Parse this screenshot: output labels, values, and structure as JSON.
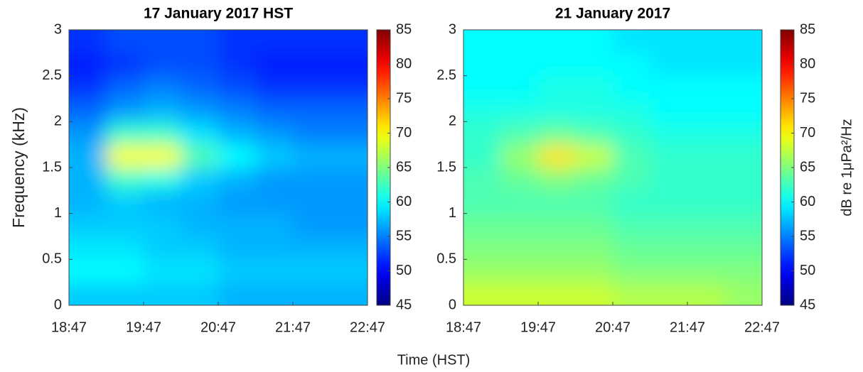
{
  "xlabel": "Time (HST)",
  "chart_data": [
    {
      "type": "heatmap",
      "title": "17 January 2017 HST",
      "ylabel": "Frequency (kHz)",
      "colormap": "jet",
      "x": [
        "19:02",
        "19:32",
        "20:02",
        "20:32",
        "21:02",
        "21:32",
        "22:02",
        "22:32"
      ],
      "y": [
        0.125,
        0.375,
        0.625,
        0.875,
        1.125,
        1.375,
        1.625,
        1.875,
        2.125,
        2.375,
        2.625,
        2.875
      ],
      "values": [
        [
          58,
          58,
          58,
          58,
          57,
          57,
          57,
          57
        ],
        [
          60,
          60,
          59,
          59,
          58,
          58,
          58,
          58
        ],
        [
          59,
          59,
          58,
          58,
          57,
          57,
          57,
          57
        ],
        [
          58,
          58,
          58,
          57,
          57,
          57,
          56,
          56
        ],
        [
          57,
          58,
          57,
          57,
          56,
          56,
          56,
          56
        ],
        [
          57,
          62,
          61,
          58,
          57,
          56,
          56,
          56
        ],
        [
          57,
          70,
          70,
          63,
          60,
          58,
          57,
          57
        ],
        [
          56,
          62,
          62,
          59,
          57,
          56,
          55,
          55
        ],
        [
          54,
          56,
          57,
          56,
          55,
          54,
          54,
          54
        ],
        [
          52,
          54,
          55,
          54,
          53,
          52,
          52,
          52
        ],
        [
          51,
          52,
          53,
          53,
          52,
          51,
          51,
          51
        ],
        [
          52,
          53,
          53,
          53,
          52,
          52,
          52,
          52
        ]
      ],
      "xlim": [
        "18:47",
        "22:47"
      ],
      "xticks": [
        "18:47",
        "19:47",
        "20:47",
        "21:47",
        "22:47"
      ],
      "ylim": [
        0,
        3
      ],
      "yticks": [
        0,
        0.5,
        1,
        1.5,
        2,
        2.5,
        3
      ],
      "zlim": [
        45,
        85
      ],
      "zticks": [
        45,
        50,
        55,
        60,
        65,
        70,
        75,
        80,
        85
      ]
    },
    {
      "type": "heatmap",
      "title": "21 January 2017",
      "zlabel": "dB re 1μPa²/Hz",
      "colormap": "jet",
      "x": [
        "19:02",
        "19:32",
        "20:02",
        "20:32",
        "21:02",
        "21:32",
        "22:02",
        "22:32"
      ],
      "y": [
        0.125,
        0.375,
        0.625,
        0.875,
        1.125,
        1.375,
        1.625,
        1.875,
        2.125,
        2.375,
        2.625,
        2.875
      ],
      "values": [
        [
          68,
          68,
          68,
          68,
          67,
          67,
          67,
          66
        ],
        [
          66,
          66,
          66,
          66,
          65,
          65,
          65,
          65
        ],
        [
          65,
          65,
          65,
          65,
          64,
          64,
          64,
          64
        ],
        [
          64,
          64,
          64,
          64,
          63,
          63,
          63,
          63
        ],
        [
          63,
          63,
          63,
          63,
          62,
          62,
          62,
          62
        ],
        [
          63,
          64,
          65,
          64,
          63,
          62,
          62,
          62
        ],
        [
          62,
          66,
          71,
          68,
          63,
          62,
          62,
          62
        ],
        [
          62,
          63,
          64,
          63,
          62,
          61,
          61,
          61
        ],
        [
          61,
          61,
          61,
          61,
          61,
          60,
          60,
          60
        ],
        [
          60,
          60,
          61,
          61,
          60,
          60,
          60,
          60
        ],
        [
          60,
          60,
          60,
          60,
          60,
          59,
          59,
          59
        ],
        [
          60,
          60,
          60,
          60,
          59,
          59,
          59,
          59
        ]
      ],
      "xlim": [
        "18:47",
        "22:47"
      ],
      "xticks": [
        "18:47",
        "19:47",
        "20:47",
        "21:47",
        "22:47"
      ],
      "ylim": [
        0,
        3
      ],
      "yticks": [
        0,
        0.5,
        1,
        1.5,
        2,
        2.5,
        3
      ],
      "zlim": [
        45,
        85
      ],
      "zticks": [
        45,
        50,
        55,
        60,
        65,
        70,
        75,
        80,
        85
      ]
    }
  ]
}
